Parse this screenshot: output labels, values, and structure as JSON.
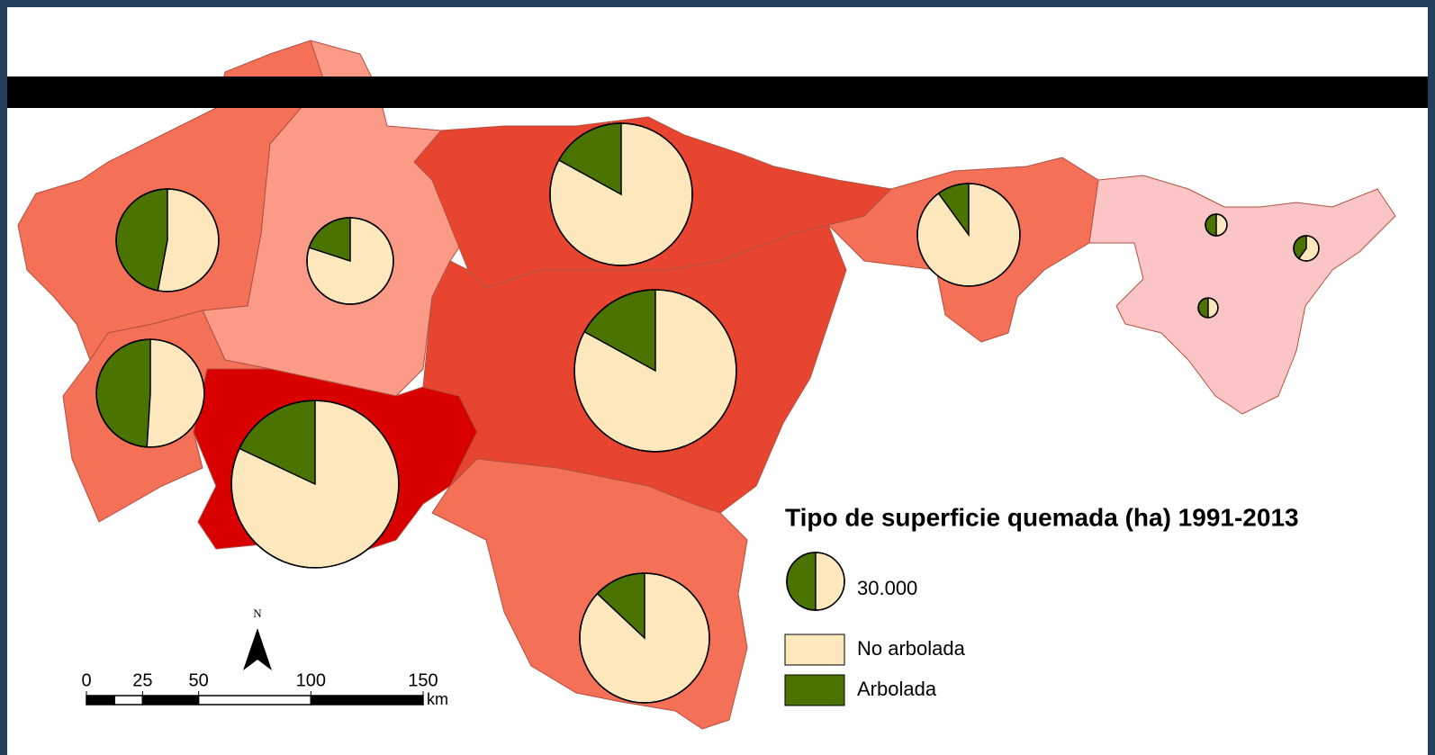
{
  "legend": {
    "title": "Tipo de superficie quemada (ha) 1991-2013",
    "size": {
      "value": 30000,
      "label": "30.000"
    },
    "items": [
      {
        "name": "No arbolada",
        "color": "#fde8bd"
      },
      {
        "name": "Arbolada",
        "color": "#4a7300"
      }
    ]
  },
  "pies": [
    {
      "total": 95000,
      "arbolada": 47
    },
    {
      "total": 67500,
      "arbolada": 20
    },
    {
      "total": 183000,
      "arbolada": 17
    },
    {
      "total": 95000,
      "arbolada": 10
    },
    {
      "total": 105000,
      "arbolada": 49
    },
    {
      "total": 253000,
      "arbolada": 18
    },
    {
      "total": 237000,
      "arbolada": 17
    },
    {
      "total": 152000,
      "arbolada": 13
    },
    {
      "total": 4200,
      "arbolada": 50
    },
    {
      "total": 5700,
      "arbolada": 40
    },
    {
      "total": 3500,
      "arbolada": 50
    }
  ],
  "north": "N",
  "scale": {
    "ticks": [
      0,
      25,
      50,
      100,
      150
    ],
    "unit": "km"
  }
}
